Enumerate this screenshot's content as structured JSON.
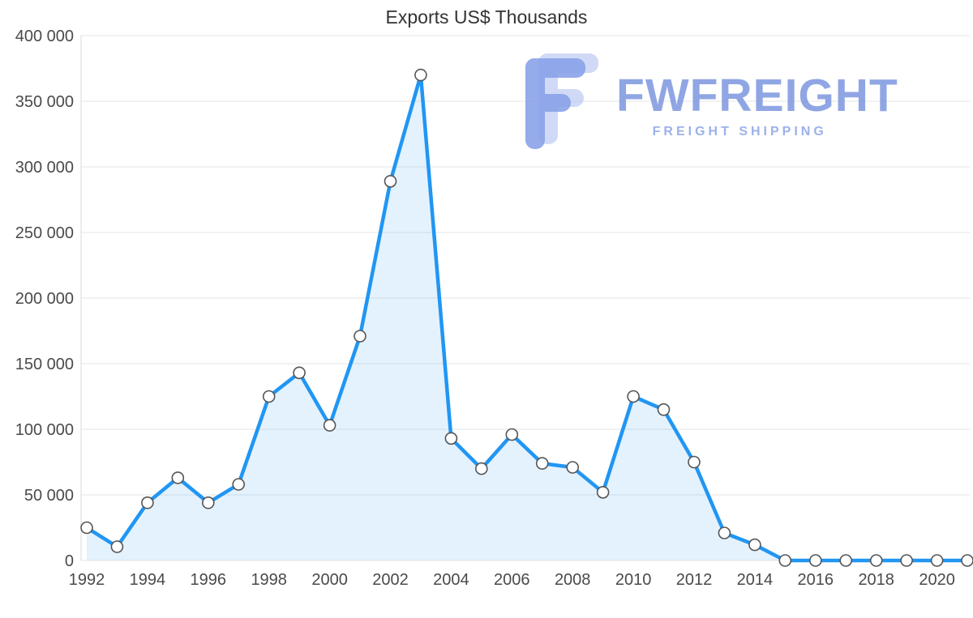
{
  "title": "Exports US$ Thousands",
  "logo": {
    "name": "FWFREIGHT",
    "subtitle": "FREIGHT SHIPPING",
    "wordmark_color": "#7590de",
    "subtitle_color": "#93a9e8",
    "icon_color": "#8aa2e8"
  },
  "chart_data": {
    "type": "area",
    "title": "Exports US$ Thousands",
    "xlabel": "",
    "ylabel": "",
    "legend": "none",
    "grid": "horizontal",
    "ylim": [
      0,
      400000
    ],
    "y_tick_step": 50000,
    "x": [
      1992,
      1993,
      1994,
      1995,
      1996,
      1997,
      1998,
      1999,
      2000,
      2001,
      2002,
      2003,
      2004,
      2005,
      2006,
      2007,
      2008,
      2009,
      2010,
      2011,
      2012,
      2013,
      2014,
      2015,
      2016,
      2017,
      2018,
      2019,
      2020,
      2021
    ],
    "values": [
      25000,
      10500,
      44000,
      63000,
      44000,
      58000,
      125000,
      143000,
      103000,
      171000,
      289000,
      370000,
      93000,
      70000,
      96000,
      74000,
      71000,
      52000,
      125000,
      115000,
      75000,
      21000,
      12000,
      0,
      0,
      0,
      0,
      0,
      0,
      0
    ],
    "y_ticks": [
      {
        "value": 0,
        "label": "0"
      },
      {
        "value": 50000,
        "label": "50 000"
      },
      {
        "value": 100000,
        "label": "100 000"
      },
      {
        "value": 150000,
        "label": "150 000"
      },
      {
        "value": 200000,
        "label": "200 000"
      },
      {
        "value": 250000,
        "label": "250 000"
      },
      {
        "value": 300000,
        "label": "300 000"
      },
      {
        "value": 350000,
        "label": "350 000"
      },
      {
        "value": 400000,
        "label": "400 000"
      }
    ],
    "x_ticks": [
      {
        "value": 1992,
        "label": "1992"
      },
      {
        "value": 1994,
        "label": "1994"
      },
      {
        "value": 1996,
        "label": "1996"
      },
      {
        "value": 1998,
        "label": "1998"
      },
      {
        "value": 2000,
        "label": "2000"
      },
      {
        "value": 2002,
        "label": "2002"
      },
      {
        "value": 2004,
        "label": "2004"
      },
      {
        "value": 2006,
        "label": "2006"
      },
      {
        "value": 2008,
        "label": "2008"
      },
      {
        "value": 2010,
        "label": "2010"
      },
      {
        "value": 2012,
        "label": "2012"
      },
      {
        "value": 2014,
        "label": "2014"
      },
      {
        "value": 2016,
        "label": "2016"
      },
      {
        "value": 2018,
        "label": "2018"
      },
      {
        "value": 2020,
        "label": "2020"
      }
    ],
    "colors": {
      "line": "#2196f3",
      "area_fill": "rgba(33,150,243,0.12)",
      "marker_fill": "#ffffff",
      "marker_stroke": "#555555",
      "grid": "#e6e6e6",
      "axis_line": "#d8d8d8",
      "axis_label": "#4a4a4a",
      "title_color": "#333333"
    }
  }
}
